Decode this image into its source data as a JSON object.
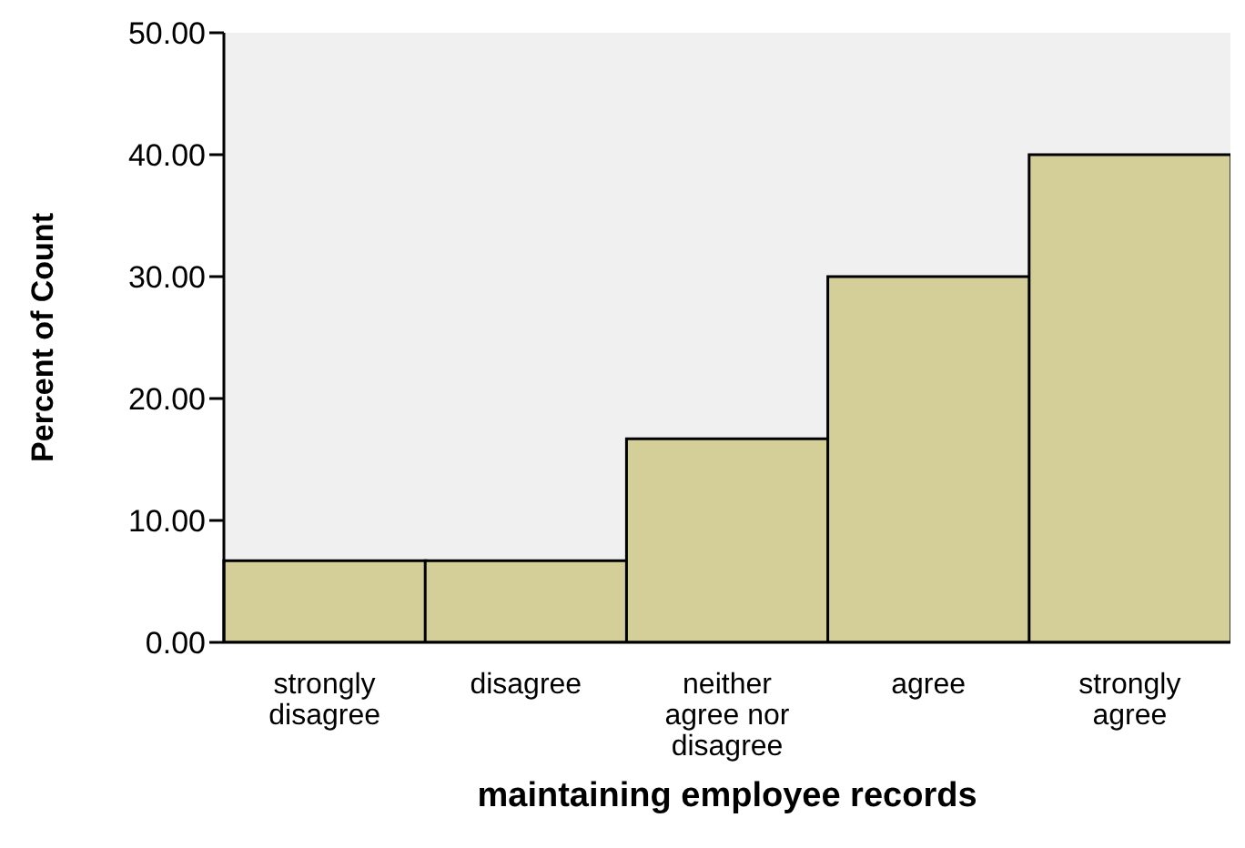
{
  "chart_data": {
    "type": "bar",
    "xlabel": "maintaining employee records",
    "ylabel": "Percent of Count",
    "categories": [
      "strongly disagree",
      "disagree",
      "neither agree nor disagree",
      "agree",
      "strongly agree"
    ],
    "values": [
      6.7,
      6.7,
      16.7,
      30,
      40
    ],
    "color": "#d4cf99",
    "ylim": [
      0,
      50
    ],
    "yticks": [
      {
        "value": 0,
        "label": "0.00"
      },
      {
        "value": 10,
        "label": "10.00"
      },
      {
        "value": 20,
        "label": "20.00"
      },
      {
        "value": 30,
        "label": "30.00"
      },
      {
        "value": 40,
        "label": "40.00"
      },
      {
        "value": 50,
        "label": "50.00"
      }
    ],
    "grid": false
  }
}
